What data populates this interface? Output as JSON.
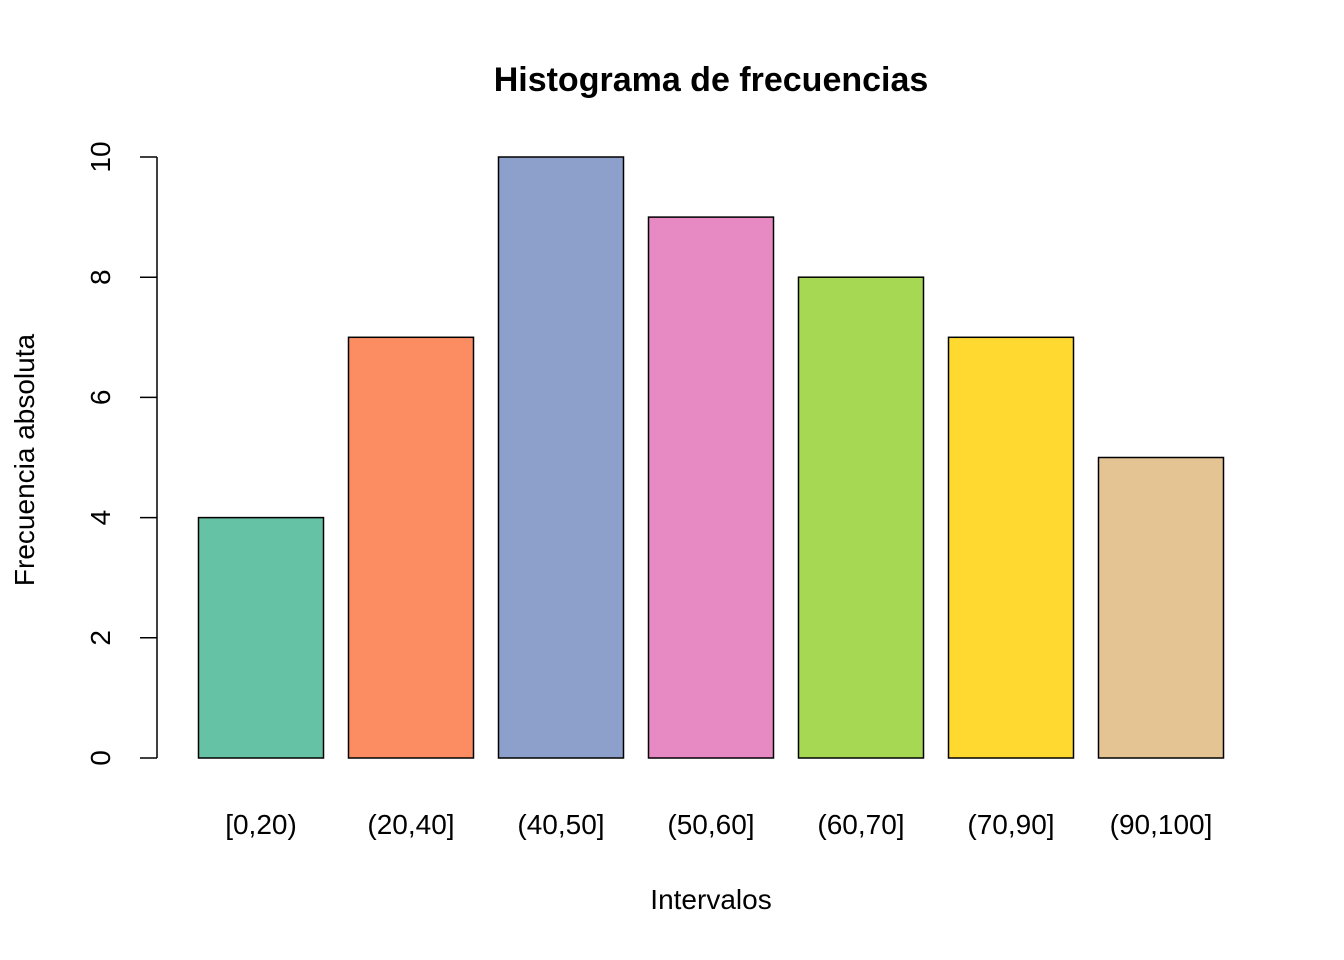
{
  "chart_data": {
    "type": "bar",
    "title": "Histograma de frecuencias",
    "xlabel": "Intervalos",
    "ylabel": "Frecuencia absoluta",
    "categories": [
      "[0,20)",
      "(20,40]",
      "(40,50]",
      "(50,60]",
      "(60,70]",
      "(70,90]",
      "(90,100]"
    ],
    "values": [
      4,
      7,
      10,
      9,
      8,
      7,
      5
    ],
    "colors": [
      "#66C2A5",
      "#FC8D62",
      "#8DA0CB",
      "#E78AC3",
      "#A6D854",
      "#FFD92F",
      "#E5C494"
    ],
    "ylim": [
      0,
      10
    ],
    "yticks": [
      0,
      2,
      4,
      6,
      8,
      10
    ],
    "grid": false,
    "legend": "none"
  }
}
